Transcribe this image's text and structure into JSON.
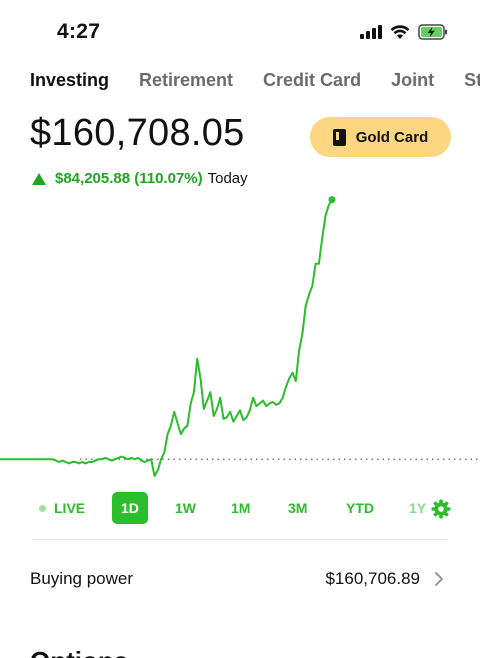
{
  "status_bar": {
    "time": "4:27",
    "signal_icon": "signal-icon",
    "wifi_icon": "wifi-icon",
    "battery_icon": "battery-charging-icon"
  },
  "tabs": [
    {
      "label": "Investing",
      "active": true
    },
    {
      "label": "Retirement",
      "active": false
    },
    {
      "label": "Credit Card",
      "active": false
    },
    {
      "label": "Joint",
      "active": false
    },
    {
      "label": "Str",
      "active": false
    }
  ],
  "portfolio": {
    "balance": "$160,708.05",
    "change": "$84,205.88 (110.07%)",
    "change_period": "Today",
    "gold_button_label": "Gold Card"
  },
  "colors": {
    "accent_green": "#2bbd2b",
    "gain_green": "#1fa51f",
    "gold": "#fcd680"
  },
  "chart_data": {
    "type": "line",
    "title": "",
    "xlabel": "",
    "ylabel": "",
    "baseline": 0,
    "ylim": [
      -12,
      190
    ],
    "series": [
      {
        "values": [
          0,
          0,
          0,
          0,
          0,
          0,
          0,
          0,
          0,
          0,
          0,
          0,
          0,
          0,
          0,
          0,
          0,
          -1,
          -2,
          -1,
          -2,
          -3,
          -2,
          -2,
          -3,
          -2,
          -3,
          -2,
          -2,
          -1,
          0,
          0,
          1,
          0,
          -1,
          0,
          1,
          2,
          1,
          0,
          1,
          0,
          1,
          -1,
          -2,
          -1,
          0,
          -12,
          -8,
          0,
          5,
          18,
          24,
          34,
          26,
          18,
          22,
          24,
          40,
          48,
          72,
          58,
          36,
          42,
          48,
          31,
          36,
          44,
          29,
          30,
          34,
          27,
          31,
          35,
          28,
          30,
          35,
          44,
          38,
          40,
          42,
          38,
          40,
          41,
          39,
          40,
          44,
          52,
          58,
          62,
          56,
          78,
          90,
          110,
          118,
          124,
          140,
          140,
          158,
          174,
          182,
          186
        ]
      }
    ]
  },
  "ranges": [
    {
      "label": "LIVE",
      "active": false
    },
    {
      "label": "1D",
      "active": true
    },
    {
      "label": "1W",
      "active": false
    },
    {
      "label": "1M",
      "active": false
    },
    {
      "label": "3M",
      "active": false
    },
    {
      "label": "YTD",
      "active": false
    },
    {
      "label": "1Y",
      "active": false
    }
  ],
  "settings_icon": "gear-icon",
  "buying_power": {
    "label": "Buying power",
    "value": "$160,706.89",
    "icon": "chevron-right-icon"
  },
  "next_section": {
    "heading": "Options"
  }
}
